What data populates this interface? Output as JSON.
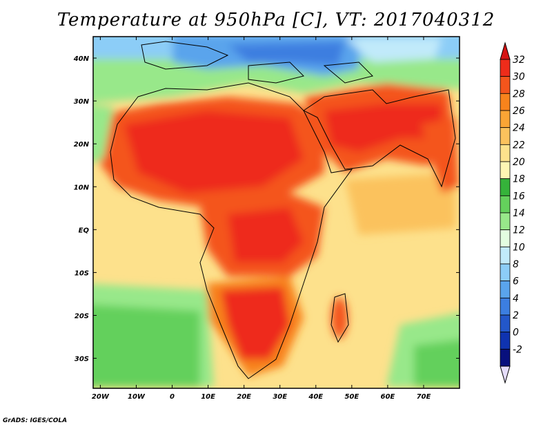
{
  "title": "Temperature at 950hPa [C], VT: 2017040312",
  "credit": "GrADS: IGES/COLA",
  "map": {
    "lon_range": [
      -22,
      80
    ],
    "lat_range": [
      -37,
      45
    ],
    "lon_ticks": [
      {
        "value": -20,
        "label": "20W"
      },
      {
        "value": -10,
        "label": "10W"
      },
      {
        "value": 0,
        "label": "0"
      },
      {
        "value": 10,
        "label": "10E"
      },
      {
        "value": 20,
        "label": "20E"
      },
      {
        "value": 30,
        "label": "30E"
      },
      {
        "value": 40,
        "label": "40E"
      },
      {
        "value": 50,
        "label": "50E"
      },
      {
        "value": 60,
        "label": "60E"
      },
      {
        "value": 70,
        "label": "70E"
      }
    ],
    "lat_ticks": [
      {
        "value": 40,
        "label": "40N"
      },
      {
        "value": 30,
        "label": "30N"
      },
      {
        "value": 20,
        "label": "20N"
      },
      {
        "value": 10,
        "label": "10N"
      },
      {
        "value": 0,
        "label": "EQ"
      },
      {
        "value": -10,
        "label": "10S"
      },
      {
        "value": -20,
        "label": "20S"
      },
      {
        "value": -30,
        "label": "30S"
      }
    ]
  },
  "colorbar": {
    "labels": [
      "32",
      "30",
      "28",
      "26",
      "24",
      "22",
      "20",
      "18",
      "16",
      "14",
      "12",
      "10",
      "8",
      "6",
      "4",
      "2",
      "0",
      "-2"
    ],
    "colors_top_to_bottom": [
      "#ee2c1a",
      "#f4551c",
      "#f8831c",
      "#faa535",
      "#fbc25d",
      "#fde28c",
      "#fff6b4",
      "#35b33a",
      "#64d05c",
      "#98e88a",
      "#e3fde0",
      "#c1eafa",
      "#8ccdf7",
      "#5aa4ec",
      "#3c7ee0",
      "#2357c9",
      "#0f33b0",
      "#08107d"
    ],
    "top_tip_color": "#d61313",
    "bottom_tip_color": "#e5ddfb"
  }
}
